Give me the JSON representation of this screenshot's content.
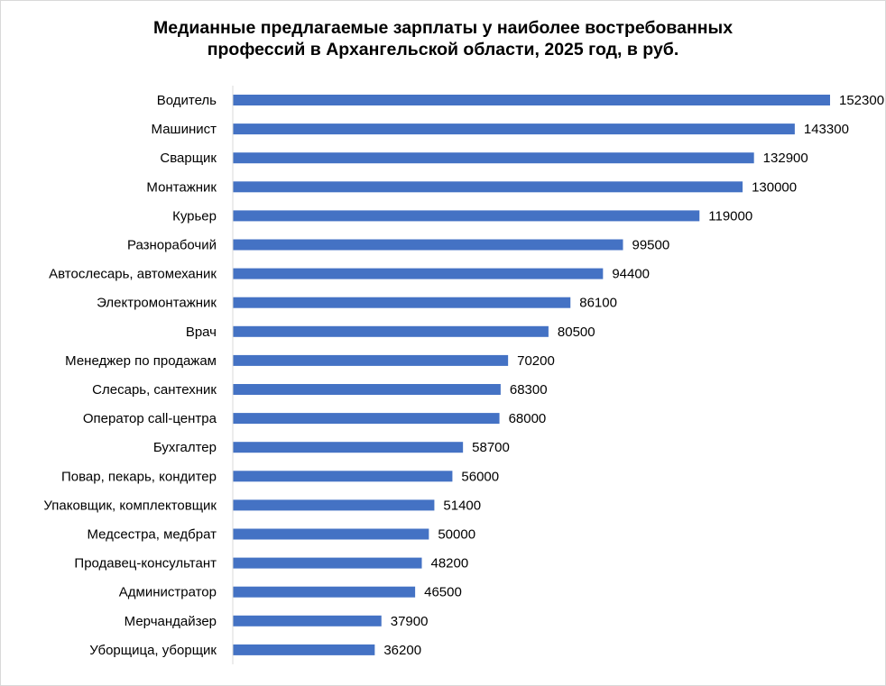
{
  "chart_data": {
    "type": "bar",
    "orientation": "horizontal",
    "title_lines": [
      "Медианные предлагаемые зарплаты у наиболее востребованных",
      "профессий в Архангельской области, 2025 год, в руб."
    ],
    "categories": [
      "Водитель",
      "Машинист",
      "Сварщик",
      "Монтажник",
      "Курьер",
      "Разнорабочий",
      "Автослесарь, автомеханик",
      "Электромонтажник",
      "Врач",
      "Менеджер по продажам",
      "Слесарь, сантехник",
      "Оператор call-центра",
      "Бухгалтер",
      "Повар, пекарь, кондитер",
      "Упаковщик, комплектовщик",
      "Медсестра, медбрат",
      "Продавец-консультант",
      "Администратор",
      "Мерчандайзер",
      "Уборщица, уборщик"
    ],
    "values": [
      152300,
      143300,
      132900,
      130000,
      119000,
      99500,
      94400,
      86100,
      80500,
      70200,
      68300,
      68000,
      58700,
      56000,
      51400,
      50000,
      48200,
      46500,
      37900,
      36200
    ],
    "data_labels": [
      "152300",
      "143300",
      "132900",
      "130000",
      "119000",
      "99500",
      "94400",
      "86100",
      "80500",
      "70200",
      "68300",
      "68000",
      "58700",
      "56000",
      "51400",
      "50000",
      "48200",
      "46500",
      "37900",
      "36200"
    ],
    "xlim": [
      0,
      160000
    ],
    "bar_color": "#4472c4",
    "grid": false,
    "legend": "none",
    "xlabel": "",
    "ylabel": ""
  }
}
